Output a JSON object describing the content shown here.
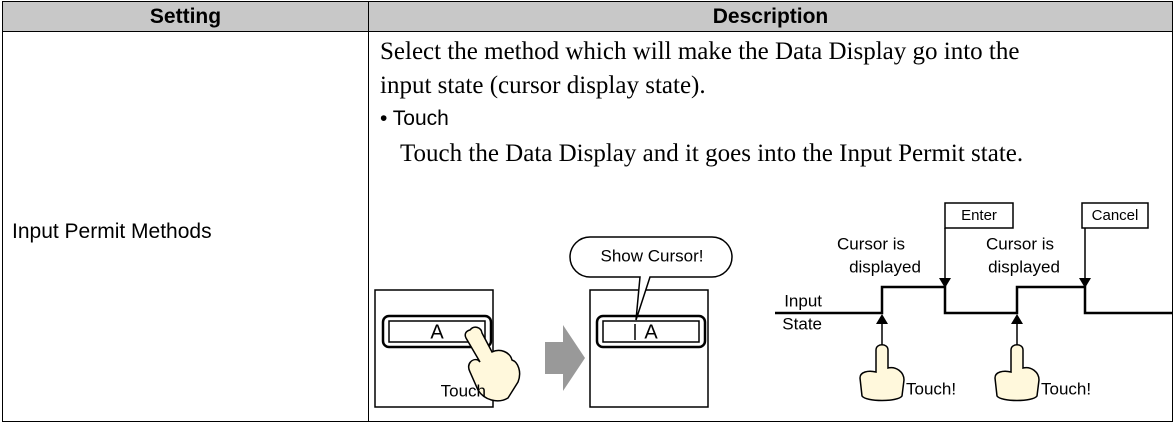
{
  "table": {
    "headers": [
      "Setting",
      "Description"
    ],
    "rows": [
      {
        "setting": "Input Permit Methods",
        "description": {
          "intro": [
            "Select the method which will make the Data Display go into the",
            "input state (cursor display state)."
          ],
          "option": "• Touch",
          "option_text": "Touch the Data Display and it goes into the Input Permit state."
        }
      }
    ]
  },
  "diagram": {
    "before": {
      "key": "A",
      "action": "Touch"
    },
    "after": {
      "callout": "Show Cursor!",
      "key": "A"
    },
    "timing": {
      "enter": "Enter",
      "cancel": "Cancel",
      "cursor_1": [
        "Cursor is",
        "displayed"
      ],
      "cursor_2": [
        "Cursor is",
        "displayed"
      ],
      "signal": [
        "Input",
        "State"
      ],
      "touch_1": "Touch!",
      "touch_2": "Touch!"
    }
  }
}
